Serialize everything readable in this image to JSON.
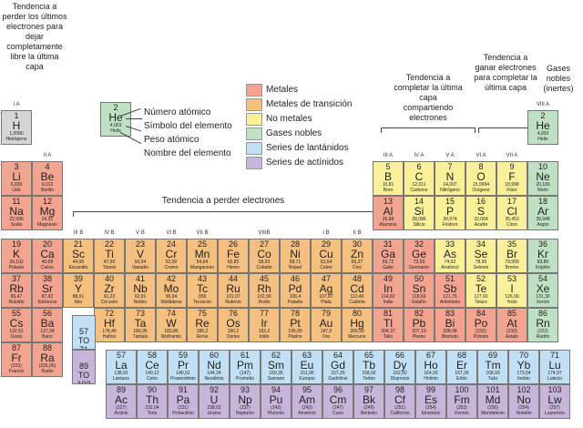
{
  "colors": {
    "metal": "#f2a490",
    "transition": "#f5bf80",
    "nonmetal": "#fbf09a",
    "noble": "#bfe0c2",
    "lanthanide": "#c2e0f5",
    "actinide": "#c8b6da",
    "hydrogen": "#d6d6d6"
  },
  "annotations": {
    "lose_last": "Tendencia a perder los últimos electrones para dejar completamente libre la última capa",
    "lose": "Tendencia a perder electrones",
    "share": "Tendencia a completar la última capa compartiendo electrones",
    "gain": "Tendencia a ganar electrones para completar la última capa",
    "noble": "Gases nobles (inertes)"
  },
  "key": {
    "element": {
      "num": "2",
      "sym": "He",
      "mass": "4,003",
      "name": "Helio"
    },
    "labels": [
      "Número atómico",
      "Símbolo del elemento",
      "Peso atómico",
      "Nombre del elemento"
    ]
  },
  "legend": [
    {
      "label": "Metales",
      "cat": "metal"
    },
    {
      "label": "Metales de transición",
      "cat": "transition"
    },
    {
      "label": "No metales",
      "cat": "nonmetal"
    },
    {
      "label": "Gases nobles",
      "cat": "noble"
    },
    {
      "label": "Series de lantánidos",
      "cat": "lanthanide"
    },
    {
      "label": "Series de actínidos",
      "cat": "actinide"
    }
  ],
  "group_labels": [
    {
      "label": "I A",
      "col": 1,
      "row": 1
    },
    {
      "label": "II A",
      "col": 2,
      "row": 2
    },
    {
      "label": "III B",
      "col": 3,
      "row": 4
    },
    {
      "label": "IV B",
      "col": 4,
      "row": 4
    },
    {
      "label": "V B",
      "col": 5,
      "row": 4
    },
    {
      "label": "VI B",
      "col": 6,
      "row": 4
    },
    {
      "label": "VII B",
      "col": 7,
      "row": 4
    },
    {
      "label": "VIIIB",
      "col": 9,
      "row": 4
    },
    {
      "label": "I B",
      "col": 11,
      "row": 4
    },
    {
      "label": "II B",
      "col": 12,
      "row": 4
    },
    {
      "label": "III A",
      "col": 13,
      "row": 2
    },
    {
      "label": "IV A",
      "col": 14,
      "row": 2
    },
    {
      "label": "V A",
      "col": 15,
      "row": 2
    },
    {
      "label": "VI A",
      "col": 16,
      "row": 2
    },
    {
      "label": "VII A",
      "col": 17,
      "row": 2
    },
    {
      "label": "VIII A",
      "col": 18,
      "row": 1
    }
  ],
  "placeholders": [
    {
      "range": "57 TO 71",
      "row": 6,
      "col": 3,
      "cat": "lanthanide"
    },
    {
      "range": "89 TO 103",
      "row": 7,
      "col": 3,
      "cat": "actinide"
    }
  ],
  "elements": [
    {
      "n": "1",
      "s": "H",
      "m": "1,0080",
      "name": "Hidrógeno",
      "r": 1,
      "c": 1,
      "cat": "hydrogen"
    },
    {
      "n": "2",
      "s": "He",
      "m": "4,003",
      "name": "Helio",
      "r": 1,
      "c": 18,
      "cat": "noble"
    },
    {
      "n": "3",
      "s": "Li",
      "m": "6,939",
      "name": "Litio",
      "r": 2,
      "c": 1,
      "cat": "metal"
    },
    {
      "n": "4",
      "s": "Be",
      "m": "9,012",
      "name": "Berilio",
      "r": 2,
      "c": 2,
      "cat": "metal"
    },
    {
      "n": "5",
      "s": "B",
      "m": "10,81",
      "name": "Boro",
      "r": 2,
      "c": 13,
      "cat": "nonmetal"
    },
    {
      "n": "6",
      "s": "C",
      "m": "12,011",
      "name": "Carbono",
      "r": 2,
      "c": 14,
      "cat": "nonmetal"
    },
    {
      "n": "7",
      "s": "N",
      "m": "14,007",
      "name": "Nitrógeno",
      "r": 2,
      "c": 15,
      "cat": "nonmetal"
    },
    {
      "n": "8",
      "s": "O",
      "m": "15,9994",
      "name": "Oxígeno",
      "r": 2,
      "c": 16,
      "cat": "nonmetal"
    },
    {
      "n": "9",
      "s": "F",
      "m": "18,998",
      "name": "Flúor",
      "r": 2,
      "c": 17,
      "cat": "nonmetal"
    },
    {
      "n": "10",
      "s": "Ne",
      "m": "20,183",
      "name": "Neón",
      "r": 2,
      "c": 18,
      "cat": "noble"
    },
    {
      "n": "11",
      "s": "Na",
      "m": "22,990",
      "name": "Sodio",
      "r": 3,
      "c": 1,
      "cat": "metal"
    },
    {
      "n": "12",
      "s": "Mg",
      "m": "24,31",
      "name": "Magnesio",
      "r": 3,
      "c": 2,
      "cat": "metal"
    },
    {
      "n": "13",
      "s": "Al",
      "m": "26,98",
      "name": "Aluminio",
      "r": 3,
      "c": 13,
      "cat": "metal"
    },
    {
      "n": "14",
      "s": "Si",
      "m": "28,086",
      "name": "Silicio",
      "r": 3,
      "c": 14,
      "cat": "nonmetal"
    },
    {
      "n": "15",
      "s": "P",
      "m": "30,974",
      "name": "Fósforo",
      "r": 3,
      "c": 15,
      "cat": "nonmetal"
    },
    {
      "n": "16",
      "s": "S",
      "m": "32,064",
      "name": "Azufre",
      "r": 3,
      "c": 16,
      "cat": "nonmetal"
    },
    {
      "n": "17",
      "s": "Cl",
      "m": "35,453",
      "name": "Cloro",
      "r": 3,
      "c": 17,
      "cat": "nonmetal"
    },
    {
      "n": "18",
      "s": "Ar",
      "m": "39,948",
      "name": "Argón",
      "r": 3,
      "c": 18,
      "cat": "noble"
    },
    {
      "n": "19",
      "s": "K",
      "m": "39,102",
      "name": "Potasio",
      "r": 4,
      "c": 1,
      "cat": "metal"
    },
    {
      "n": "20",
      "s": "Ca",
      "m": "40,08",
      "name": "Calcio",
      "r": 4,
      "c": 2,
      "cat": "metal"
    },
    {
      "n": "21",
      "s": "Sc",
      "m": "44,96",
      "name": "Escandio",
      "r": 4,
      "c": 3,
      "cat": "transition"
    },
    {
      "n": "22",
      "s": "Ti",
      "m": "47,90",
      "name": "Titanio",
      "r": 4,
      "c": 4,
      "cat": "transition"
    },
    {
      "n": "23",
      "s": "V",
      "m": "50,94",
      "name": "Vanadio",
      "r": 4,
      "c": 5,
      "cat": "transition"
    },
    {
      "n": "24",
      "s": "Cr",
      "m": "52,00",
      "name": "Cromo",
      "r": 4,
      "c": 6,
      "cat": "transition"
    },
    {
      "n": "25",
      "s": "Mn",
      "m": "54,94",
      "name": "Manganeso",
      "r": 4,
      "c": 7,
      "cat": "transition"
    },
    {
      "n": "26",
      "s": "Fe",
      "m": "55,85",
      "name": "Hierro",
      "r": 4,
      "c": 8,
      "cat": "transition"
    },
    {
      "n": "27",
      "s": "Co",
      "m": "58,93",
      "name": "Cobalto",
      "r": 4,
      "c": 9,
      "cat": "transition"
    },
    {
      "n": "28",
      "s": "Ni",
      "m": "58,71",
      "name": "Níquel",
      "r": 4,
      "c": 10,
      "cat": "transition"
    },
    {
      "n": "29",
      "s": "Cu",
      "m": "63,54",
      "name": "Cobre",
      "r": 4,
      "c": 11,
      "cat": "transition"
    },
    {
      "n": "30",
      "s": "Zn",
      "m": "65,37",
      "name": "Cinc",
      "r": 4,
      "c": 12,
      "cat": "transition"
    },
    {
      "n": "31",
      "s": "Ga",
      "m": "69,72",
      "name": "Galio",
      "r": 4,
      "c": 13,
      "cat": "metal"
    },
    {
      "n": "32",
      "s": "Ge",
      "m": "72,59",
      "name": "Germanio",
      "r": 4,
      "c": 14,
      "cat": "metal"
    },
    {
      "n": "33",
      "s": "As",
      "m": "74,92",
      "name": "Arsénico",
      "r": 4,
      "c": 15,
      "cat": "nonmetal"
    },
    {
      "n": "34",
      "s": "Se",
      "m": "78,96",
      "name": "Selenio",
      "r": 4,
      "c": 16,
      "cat": "nonmetal"
    },
    {
      "n": "35",
      "s": "Br",
      "m": "79,909",
      "name": "Bromo",
      "r": 4,
      "c": 17,
      "cat": "nonmetal"
    },
    {
      "n": "36",
      "s": "Kr",
      "m": "83,80",
      "name": "Kriptón",
      "r": 4,
      "c": 18,
      "cat": "noble"
    },
    {
      "n": "37",
      "s": "Rb",
      "m": "85,47",
      "name": "Rubidio",
      "r": 5,
      "c": 1,
      "cat": "metal"
    },
    {
      "n": "38",
      "s": "Sr",
      "m": "87,62",
      "name": "Estroncio",
      "r": 5,
      "c": 2,
      "cat": "metal"
    },
    {
      "n": "39",
      "s": "Y",
      "m": "88,91",
      "name": "Itrio",
      "r": 5,
      "c": 3,
      "cat": "transition"
    },
    {
      "n": "40",
      "s": "Zr",
      "m": "91,22",
      "name": "Circonio",
      "r": 5,
      "c": 4,
      "cat": "transition"
    },
    {
      "n": "41",
      "s": "Nb",
      "m": "92,91",
      "name": "Niobio",
      "r": 5,
      "c": 5,
      "cat": "transition"
    },
    {
      "n": "42",
      "s": "Mo",
      "m": "95,94",
      "name": "Molibdeno",
      "r": 5,
      "c": 6,
      "cat": "transition"
    },
    {
      "n": "43",
      "s": "Tc",
      "m": "(99)",
      "name": "Tecnecio",
      "r": 5,
      "c": 7,
      "cat": "transition"
    },
    {
      "n": "44",
      "s": "Ru",
      "m": "101,07",
      "name": "Rutenio",
      "r": 5,
      "c": 8,
      "cat": "transition"
    },
    {
      "n": "45",
      "s": "Rh",
      "m": "102,90",
      "name": "Rodio",
      "r": 5,
      "c": 9,
      "cat": "transition"
    },
    {
      "n": "46",
      "s": "Pd",
      "m": "106,4",
      "name": "Paladio",
      "r": 5,
      "c": 10,
      "cat": "transition"
    },
    {
      "n": "47",
      "s": "Ag",
      "m": "107,87",
      "name": "Plata",
      "r": 5,
      "c": 11,
      "cat": "transition"
    },
    {
      "n": "48",
      "s": "Cd",
      "m": "112,40",
      "name": "Cadmio",
      "r": 5,
      "c": 12,
      "cat": "transition"
    },
    {
      "n": "49",
      "s": "In",
      "m": "114,82",
      "name": "Indio",
      "r": 5,
      "c": 13,
      "cat": "metal"
    },
    {
      "n": "50",
      "s": "Sn",
      "m": "118,69",
      "name": "Estaño",
      "r": 5,
      "c": 14,
      "cat": "metal"
    },
    {
      "n": "51",
      "s": "Sb",
      "m": "121,75",
      "name": "Antimonio",
      "r": 5,
      "c": 15,
      "cat": "metal"
    },
    {
      "n": "52",
      "s": "Te",
      "m": "127,60",
      "name": "Teluro",
      "r": 5,
      "c": 16,
      "cat": "nonmetal"
    },
    {
      "n": "53",
      "s": "I",
      "m": "126,90",
      "name": "Yodo",
      "r": 5,
      "c": 17,
      "cat": "nonmetal"
    },
    {
      "n": "54",
      "s": "Xe",
      "m": "131,30",
      "name": "Xenón",
      "r": 5,
      "c": 18,
      "cat": "noble"
    },
    {
      "n": "55",
      "s": "Cs",
      "m": "132,91",
      "name": "Cesio",
      "r": 6,
      "c": 1,
      "cat": "metal"
    },
    {
      "n": "56",
      "s": "Ba",
      "m": "137,34",
      "name": "Bario",
      "r": 6,
      "c": 2,
      "cat": "metal"
    },
    {
      "n": "72",
      "s": "Hf",
      "m": "178,49",
      "name": "Hafnio",
      "r": 6,
      "c": 4,
      "cat": "transition"
    },
    {
      "n": "73",
      "s": "Ta",
      "m": "180,95",
      "name": "Tántalo",
      "r": 6,
      "c": 5,
      "cat": "transition"
    },
    {
      "n": "74",
      "s": "W",
      "m": "183,85",
      "name": "Wolframio",
      "r": 6,
      "c": 6,
      "cat": "transition"
    },
    {
      "n": "75",
      "s": "Re",
      "m": "186,2",
      "name": "Renio",
      "r": 6,
      "c": 7,
      "cat": "transition"
    },
    {
      "n": "76",
      "s": "Os",
      "m": "190,2",
      "name": "Osmio",
      "r": 6,
      "c": 8,
      "cat": "transition"
    },
    {
      "n": "77",
      "s": "Ir",
      "m": "192,2",
      "name": "Iridio",
      "r": 6,
      "c": 9,
      "cat": "transition"
    },
    {
      "n": "78",
      "s": "Pt",
      "m": "195,09",
      "name": "Platino",
      "r": 6,
      "c": 10,
      "cat": "transition"
    },
    {
      "n": "79",
      "s": "Au",
      "m": "197,0",
      "name": "Oro",
      "r": 6,
      "c": 11,
      "cat": "transition"
    },
    {
      "n": "80",
      "s": "Hg",
      "m": "200,59",
      "name": "Mercurio",
      "r": 6,
      "c": 12,
      "cat": "transition"
    },
    {
      "n": "81",
      "s": "Tl",
      "m": "204,37",
      "name": "Talio",
      "r": 6,
      "c": 13,
      "cat": "metal"
    },
    {
      "n": "82",
      "s": "Pb",
      "m": "207,19",
      "name": "Plomo",
      "r": 6,
      "c": 14,
      "cat": "metal"
    },
    {
      "n": "83",
      "s": "Bi",
      "m": "208,98",
      "name": "Bismuto",
      "r": 6,
      "c": 15,
      "cat": "metal"
    },
    {
      "n": "84",
      "s": "Po",
      "m": "(210)",
      "name": "Polonio",
      "r": 6,
      "c": 16,
      "cat": "metal"
    },
    {
      "n": "85",
      "s": "At",
      "m": "(210)",
      "name": "Astato",
      "r": 6,
      "c": 17,
      "cat": "metal"
    },
    {
      "n": "86",
      "s": "Rn",
      "m": "(222)",
      "name": "Radón",
      "r": 6,
      "c": 18,
      "cat": "noble"
    },
    {
      "n": "87",
      "s": "Fr",
      "m": "(223)",
      "name": "Francio",
      "r": 7,
      "c": 1,
      "cat": "metal"
    },
    {
      "n": "88",
      "s": "Ra",
      "m": "(226,05)",
      "name": "Radio",
      "r": 7,
      "c": 2,
      "cat": "metal"
    },
    {
      "n": "57",
      "s": "La",
      "m": "138,91",
      "name": "Lantano",
      "r": 8,
      "c": 4,
      "cat": "lanthanide"
    },
    {
      "n": "58",
      "s": "Ce",
      "m": "140,12",
      "name": "Cerio",
      "r": 8,
      "c": 5,
      "cat": "lanthanide"
    },
    {
      "n": "59",
      "s": "Pr",
      "m": "140,91",
      "name": "Praseodimio",
      "r": 8,
      "c": 6,
      "cat": "lanthanide"
    },
    {
      "n": "60",
      "s": "Nd",
      "m": "144,24",
      "name": "Neodimio",
      "r": 8,
      "c": 7,
      "cat": "lanthanide"
    },
    {
      "n": "61",
      "s": "Pm",
      "m": "(147)",
      "name": "Prometio",
      "r": 8,
      "c": 8,
      "cat": "lanthanide"
    },
    {
      "n": "62",
      "s": "Sm",
      "m": "150,35",
      "name": "Samario",
      "r": 8,
      "c": 9,
      "cat": "lanthanide"
    },
    {
      "n": "63",
      "s": "Eu",
      "m": "151,96",
      "name": "Europio",
      "r": 8,
      "c": 10,
      "cat": "lanthanide"
    },
    {
      "n": "64",
      "s": "Gd",
      "m": "157,25",
      "name": "Gadolinio",
      "r": 8,
      "c": 11,
      "cat": "lanthanide"
    },
    {
      "n": "65",
      "s": "Tb",
      "m": "158,92",
      "name": "Terbio",
      "r": 8,
      "c": 12,
      "cat": "lanthanide"
    },
    {
      "n": "66",
      "s": "Dy",
      "m": "162,50",
      "name": "Disprosio",
      "r": 8,
      "c": 13,
      "cat": "lanthanide"
    },
    {
      "n": "67",
      "s": "Ho",
      "m": "164,93",
      "name": "Holmio",
      "r": 8,
      "c": 14,
      "cat": "lanthanide"
    },
    {
      "n": "68",
      "s": "Er",
      "m": "167,26",
      "name": "Erbio",
      "r": 8,
      "c": 15,
      "cat": "lanthanide"
    },
    {
      "n": "69",
      "s": "Tm",
      "m": "168,93",
      "name": "Tulio",
      "r": 8,
      "c": 16,
      "cat": "lanthanide"
    },
    {
      "n": "70",
      "s": "Yb",
      "m": "173,04",
      "name": "Iterbio",
      "r": 8,
      "c": 17,
      "cat": "lanthanide"
    },
    {
      "n": "71",
      "s": "Lu",
      "m": "174,97",
      "name": "Lutecio",
      "r": 8,
      "c": 18,
      "cat": "lanthanide"
    },
    {
      "n": "89",
      "s": "Ac",
      "m": "(227)",
      "name": "Actinio",
      "r": 9,
      "c": 4,
      "cat": "actinide"
    },
    {
      "n": "90",
      "s": "Th",
      "m": "232,04",
      "name": "Torio",
      "r": 9,
      "c": 5,
      "cat": "actinide"
    },
    {
      "n": "91",
      "s": "Pa",
      "m": "(231)",
      "name": "Protactinio",
      "r": 9,
      "c": 6,
      "cat": "actinide"
    },
    {
      "n": "92",
      "s": "U",
      "m": "238,03",
      "name": "Uranio",
      "r": 9,
      "c": 7,
      "cat": "actinide"
    },
    {
      "n": "93",
      "s": "Np",
      "m": "(237)",
      "name": "Neptunio",
      "r": 9,
      "c": 8,
      "cat": "actinide"
    },
    {
      "n": "94",
      "s": "Pu",
      "m": "(242)",
      "name": "Plutonio",
      "r": 9,
      "c": 9,
      "cat": "actinide"
    },
    {
      "n": "95",
      "s": "Am",
      "m": "(243)",
      "name": "Americio",
      "r": 9,
      "c": 10,
      "cat": "actinide"
    },
    {
      "n": "96",
      "s": "Cm",
      "m": "(247)",
      "name": "Curio",
      "r": 9,
      "c": 11,
      "cat": "actinide"
    },
    {
      "n": "97",
      "s": "Bk",
      "m": "(249)",
      "name": "Berkelio",
      "r": 9,
      "c": 12,
      "cat": "actinide"
    },
    {
      "n": "98",
      "s": "Cf",
      "m": "(251)",
      "name": "Californio",
      "r": 9,
      "c": 13,
      "cat": "actinide"
    },
    {
      "n": "99",
      "s": "Es",
      "m": "(254)",
      "name": "Einstenio",
      "r": 9,
      "c": 14,
      "cat": "actinide"
    },
    {
      "n": "100",
      "s": "Fm",
      "m": "(253)",
      "name": "Fermio",
      "r": 9,
      "c": 15,
      "cat": "actinide"
    },
    {
      "n": "101",
      "s": "Md",
      "m": "(256)",
      "name": "Mendelevio",
      "r": 9,
      "c": 16,
      "cat": "actinide"
    },
    {
      "n": "102",
      "s": "No",
      "m": "(254)",
      "name": "Nobelio",
      "r": 9,
      "c": 17,
      "cat": "actinide"
    },
    {
      "n": "103",
      "s": "Lw",
      "m": "(257)",
      "name": "Laurencio",
      "r": 9,
      "c": 18,
      "cat": "actinide"
    }
  ]
}
